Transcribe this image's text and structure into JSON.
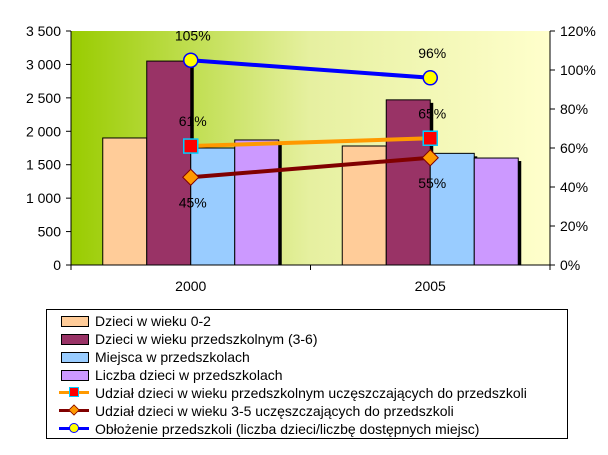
{
  "chart_data": {
    "type": "bar",
    "categories": [
      "2000",
      "2005"
    ],
    "left_axis": {
      "ylim": [
        0,
        3500
      ],
      "ticks": [
        0,
        500,
        1000,
        1500,
        2000,
        2500,
        3000,
        3500
      ],
      "tick_labels": [
        "0",
        "500",
        "1 000",
        "1 500",
        "2 000",
        "2 500",
        "3 000",
        "3 500"
      ]
    },
    "right_axis": {
      "ylim": [
        0,
        120
      ],
      "ticks": [
        0,
        20,
        40,
        60,
        80,
        100,
        120
      ],
      "tick_labels": [
        "0%",
        "20%",
        "40%",
        "60%",
        "80%",
        "100%",
        "120%"
      ]
    },
    "bar_series": [
      {
        "name": "Dzieci w wieku 0-2",
        "color": "#ffcc99",
        "values": [
          1900,
          1780
        ]
      },
      {
        "name": "Dzieci w wieku przedszkolnym (3-6)",
        "color": "#993366",
        "values": [
          3050,
          2470
        ]
      },
      {
        "name": "Miejsca w przedszkolach",
        "color": "#99ccff",
        "values": [
          1750,
          1670
        ]
      },
      {
        "name": "Liczba dzieci w przedszkolach",
        "color": "#cc99ff",
        "values": [
          1870,
          1600
        ]
      }
    ],
    "line_series": [
      {
        "name": "Udział dzieci w wieku przedszkolnym uczęszczających do przedszkoli",
        "color": "#ff9900",
        "marker": "square",
        "marker_color": "#ff0000",
        "values": [
          61,
          65
        ],
        "labels": [
          "61%",
          "65%"
        ]
      },
      {
        "name": "Udział dzieci w wieku 3-5 uczęszczających do przedszkoli",
        "color": "#800000",
        "marker": "diamond",
        "marker_color": "#ff9900",
        "values": [
          45,
          55
        ],
        "labels": [
          "45%",
          "55%"
        ]
      },
      {
        "name": "Obłożenie przedszkoli (liczba dzieci/liczbę dostępnych miejsc)",
        "color": "#0000ff",
        "marker": "circle",
        "marker_color": "#ffff00",
        "values": [
          105,
          96
        ],
        "labels": [
          "105%",
          "96%"
        ]
      }
    ],
    "legend_position": "bottom",
    "grid": false
  }
}
